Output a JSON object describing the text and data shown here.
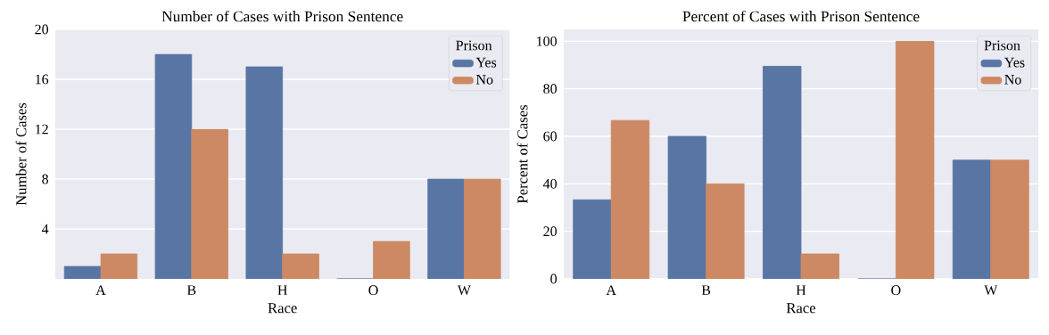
{
  "chart_data": [
    {
      "type": "bar",
      "title": "Number of Cases with Prison Sentence",
      "xlabel": "Race",
      "ylabel": "Number of Cases",
      "legend_title": "Prison",
      "categories": [
        "A",
        "B",
        "H",
        "O",
        "W"
      ],
      "series": [
        {
          "name": "Yes",
          "color": "#5975a4",
          "values": [
            1,
            18,
            17,
            0,
            8
          ]
        },
        {
          "name": "No",
          "color": "#cc8963",
          "values": [
            2,
            12,
            2,
            3,
            8
          ]
        }
      ],
      "ylim": [
        0,
        20
      ],
      "yticks": [
        4,
        8,
        12,
        16,
        20
      ],
      "grid": "y",
      "legend": "top right"
    },
    {
      "type": "bar",
      "title": "Percent of Cases with Prison Sentence",
      "xlabel": "Race",
      "ylabel": "Percent of Cases",
      "legend_title": "Prison",
      "categories": [
        "A",
        "B",
        "H",
        "O",
        "W"
      ],
      "series": [
        {
          "name": "Yes",
          "color": "#5975a4",
          "values": [
            33.3,
            60,
            89.5,
            0,
            50
          ]
        },
        {
          "name": "No",
          "color": "#cc8963",
          "values": [
            66.7,
            40,
            10.5,
            100,
            50
          ]
        }
      ],
      "ylim": [
        0,
        105
      ],
      "yticks": [
        0,
        20,
        40,
        60,
        80,
        100
      ],
      "grid": "y",
      "legend": "top right"
    }
  ]
}
